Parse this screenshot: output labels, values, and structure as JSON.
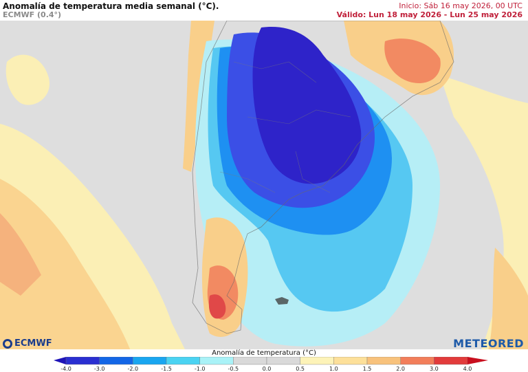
{
  "header": {
    "title": "Anomalía de temperatura media semanal (°C).",
    "model": "ECMWF (0.4°)",
    "init": "Inicio: Sáb 16 may 2026, 00 UTC",
    "valid": "Válido: Lun 18 may 2026 - Lun 25 may 2026"
  },
  "logos": {
    "left": "ECMWF",
    "right": "METEORED"
  },
  "legend": {
    "title": "Anomalía de temperatura (°C)",
    "ticks": [
      "-4.0",
      "-3.0",
      "-2.0",
      "-1.5",
      "-1.0",
      "-0.5",
      "0.0",
      "0.5",
      "1.0",
      "1.5",
      "2.0",
      "3.0",
      "4.0"
    ],
    "colors": [
      "#2a2fd1",
      "#1366e6",
      "#19a6f0",
      "#4ad3f2",
      "#a9f2f7",
      "#d9d9d9",
      "#d9d9d9",
      "#fdf3b8",
      "#fde09a",
      "#f8c27c",
      "#f27e5a",
      "#e23b3b"
    ],
    "arrow_left": "#1e14b8",
    "arrow_right": "#c80f1e"
  },
  "map_colors": {
    "ocean_neutral": "#dedede",
    "land_neutral": "#e6e6e6",
    "very_cold": "#2e23c9",
    "cold": "#3b4fe6",
    "cool": "#1e90f2",
    "light_cool": "#56c8f2",
    "pale_cool": "#b6eef6",
    "warm_pale": "#fbefb5",
    "warm": "#f9cf8a",
    "hot": "#f28a62",
    "very_hot": "#e04848"
  }
}
